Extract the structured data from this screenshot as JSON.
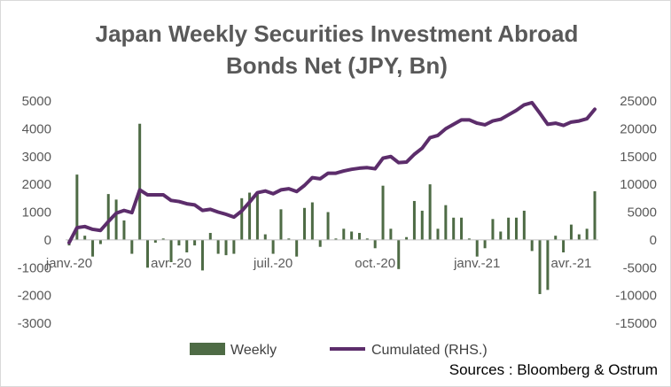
{
  "chart_data": {
    "type": "bar",
    "title_lines": [
      "Japan Weekly Securities Investment Abroad",
      "Bonds Net (JPY, Bn)"
    ],
    "source": "Sources : Bloomberg & Ostrum",
    "colors": {
      "weekly": "#4e6b45",
      "cumulated": "#5c2d6b"
    },
    "y_left": {
      "lim": [
        -3000,
        5000
      ],
      "ticks": [
        -3000,
        -2000,
        -1000,
        0,
        1000,
        2000,
        3000,
        4000,
        5000
      ]
    },
    "y_right": {
      "lim": [
        -15000,
        25000
      ],
      "ticks": [
        -15000,
        -10000,
        -5000,
        0,
        5000,
        10000,
        15000,
        20000,
        25000
      ]
    },
    "x_labels": [
      "janv.-20",
      "avr.-20",
      "juil.-20",
      "oct.-20",
      "janv.-21",
      "avr.-21"
    ],
    "x_label_weeks": [
      0,
      13,
      26,
      39,
      52,
      64
    ],
    "series": [
      {
        "name": "Weekly",
        "type": "bar",
        "axis": "left",
        "values": [
          -200,
          2350,
          150,
          -600,
          -150,
          1650,
          1450,
          700,
          -500,
          4180,
          -1000,
          -100,
          50,
          -800,
          -200,
          -450,
          -200,
          -1100,
          250,
          -500,
          -550,
          -500,
          1500,
          1700,
          1650,
          200,
          -500,
          1100,
          50,
          -600,
          1150,
          1350,
          -250,
          1000,
          50,
          400,
          300,
          250,
          50,
          -300,
          1950,
          400,
          -1050,
          100,
          1400,
          1050,
          2000,
          400,
          1250,
          800,
          800,
          50,
          -600,
          -300,
          750,
          300,
          800,
          800,
          1050,
          -400,
          -1950,
          -1800,
          150,
          -450,
          550,
          200,
          400,
          1750
        ]
      },
      {
        "name": "Cumulated (RHS.)",
        "type": "line",
        "axis": "right",
        "values": [
          -500,
          2200,
          2400,
          1900,
          1700,
          3300,
          4800,
          5300,
          4900,
          9000,
          8100,
          8100,
          8100,
          7100,
          6900,
          6500,
          6300,
          5300,
          5500,
          5000,
          4600,
          4100,
          5200,
          6800,
          8500,
          8800,
          8300,
          9000,
          9200,
          8700,
          9800,
          11200,
          11000,
          12000,
          12000,
          12400,
          12700,
          12900,
          13000,
          12800,
          14700,
          15000,
          13900,
          14000,
          15400,
          16500,
          18400,
          18800,
          20000,
          20800,
          21600,
          21600,
          21000,
          20700,
          21400,
          21700,
          22500,
          23300,
          24300,
          24700,
          22800,
          20800,
          21000,
          20600,
          21200,
          21400,
          21800,
          23500
        ]
      }
    ]
  }
}
